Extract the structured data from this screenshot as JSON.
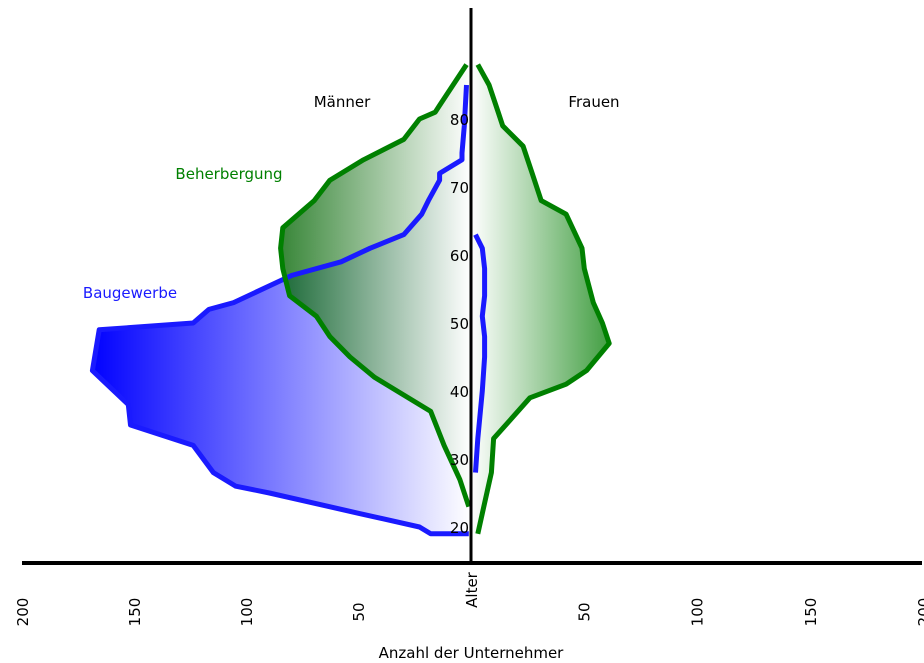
{
  "chart_data": {
    "type": "area",
    "xlabel": "Anzahl der Unternehmer",
    "ylabel": "Alter",
    "xlim": [
      -200,
      200
    ],
    "ylim": [
      16,
      88
    ],
    "x_ticks": [
      -200,
      -150,
      -100,
      -50,
      50,
      100,
      150,
      200
    ],
    "x_tick_labels": [
      "200",
      "150",
      "100",
      "50",
      "50",
      "100",
      "150",
      "200"
    ],
    "y_ticks": [
      20,
      30,
      40,
      50,
      60,
      70,
      80
    ],
    "y_tick_labels": [
      "20",
      "30",
      "40",
      "50",
      "60",
      "70",
      "80"
    ],
    "side_labels": {
      "left": "Männer",
      "right": "Frauen"
    },
    "colors": {
      "beherbergung": "#008000",
      "baugewerbe": "#1a1aff",
      "axis": "#000000"
    },
    "series": [
      {
        "name": "Beherbergung",
        "color": "#008000",
        "maenner": [
          {
            "age": 23,
            "count": -1
          },
          {
            "age": 27,
            "count": -5
          },
          {
            "age": 32,
            "count": -12
          },
          {
            "age": 37,
            "count": -18
          },
          {
            "age": 40,
            "count": -33
          },
          {
            "age": 42,
            "count": -43
          },
          {
            "age": 45,
            "count": -54
          },
          {
            "age": 48,
            "count": -63
          },
          {
            "age": 51,
            "count": -69
          },
          {
            "age": 54,
            "count": -81
          },
          {
            "age": 58,
            "count": -84
          },
          {
            "age": 61,
            "count": -85
          },
          {
            "age": 64,
            "count": -84
          },
          {
            "age": 68,
            "count": -70
          },
          {
            "age": 71,
            "count": -63
          },
          {
            "age": 74,
            "count": -48
          },
          {
            "age": 77,
            "count": -30
          },
          {
            "age": 80,
            "count": -23
          },
          {
            "age": 81,
            "count": -16
          },
          {
            "age": 82,
            "count": -14
          },
          {
            "age": 88,
            "count": -2
          }
        ],
        "frauen": [
          {
            "age": 19,
            "count": 3
          },
          {
            "age": 22,
            "count": 5
          },
          {
            "age": 28,
            "count": 9
          },
          {
            "age": 33,
            "count": 10
          },
          {
            "age": 36,
            "count": 18
          },
          {
            "age": 39,
            "count": 26
          },
          {
            "age": 41,
            "count": 42
          },
          {
            "age": 43,
            "count": 51
          },
          {
            "age": 47,
            "count": 61
          },
          {
            "age": 50,
            "count": 58
          },
          {
            "age": 53,
            "count": 54
          },
          {
            "age": 58,
            "count": 50
          },
          {
            "age": 61,
            "count": 49
          },
          {
            "age": 66,
            "count": 42
          },
          {
            "age": 68,
            "count": 31
          },
          {
            "age": 72,
            "count": 27
          },
          {
            "age": 76,
            "count": 23
          },
          {
            "age": 79,
            "count": 14
          },
          {
            "age": 81,
            "count": 12
          },
          {
            "age": 85,
            "count": 8
          },
          {
            "age": 88,
            "count": 3
          }
        ]
      },
      {
        "name": "Baugewerbe",
        "color": "#1a1aff",
        "maenner": [
          {
            "age": 19,
            "count": -1
          },
          {
            "age": 19,
            "count": -18
          },
          {
            "age": 20,
            "count": -23
          },
          {
            "age": 22,
            "count": -50
          },
          {
            "age": 25,
            "count": -90
          },
          {
            "age": 26,
            "count": -105
          },
          {
            "age": 28,
            "count": -115
          },
          {
            "age": 32,
            "count": -124
          },
          {
            "age": 35,
            "count": -152
          },
          {
            "age": 38,
            "count": -153
          },
          {
            "age": 43,
            "count": -169
          },
          {
            "age": 49,
            "count": -166
          },
          {
            "age": 50,
            "count": -124
          },
          {
            "age": 52,
            "count": -117
          },
          {
            "age": 53,
            "count": -106
          },
          {
            "age": 57,
            "count": -80
          },
          {
            "age": 59,
            "count": -58
          },
          {
            "age": 61,
            "count": -45
          },
          {
            "age": 63,
            "count": -30
          },
          {
            "age": 66,
            "count": -22
          },
          {
            "age": 68,
            "count": -19
          },
          {
            "age": 71,
            "count": -14
          },
          {
            "age": 72,
            "count": -14
          },
          {
            "age": 74,
            "count": -4
          },
          {
            "age": 75,
            "count": -4
          },
          {
            "age": 79,
            "count": -3
          },
          {
            "age": 85,
            "count": -2
          }
        ],
        "frauen": [
          {
            "age": 28,
            "count": 2
          },
          {
            "age": 33,
            "count": 3
          },
          {
            "age": 40,
            "count": 5
          },
          {
            "age": 45,
            "count": 6
          },
          {
            "age": 48,
            "count": 6
          },
          {
            "age": 51,
            "count": 5
          },
          {
            "age": 54,
            "count": 6
          },
          {
            "age": 58,
            "count": 6
          },
          {
            "age": 61,
            "count": 5
          },
          {
            "age": 63,
            "count": 2
          }
        ]
      }
    ]
  }
}
